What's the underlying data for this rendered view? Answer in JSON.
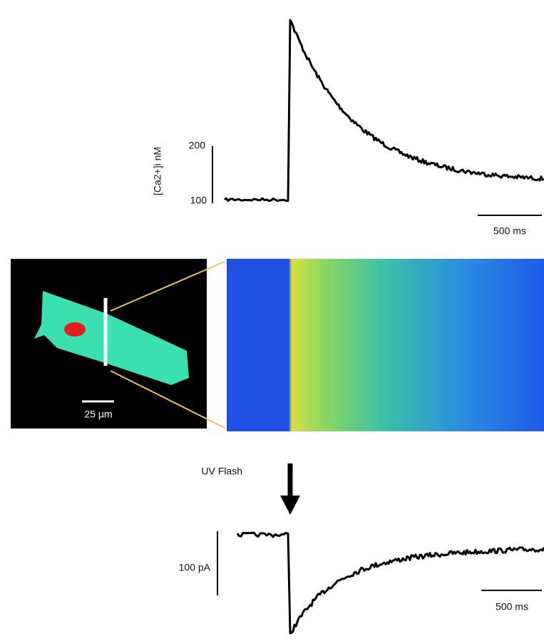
{
  "top_trace": {
    "y_axis_label": "[Ca2+]i nM",
    "scale_labels": [
      "200",
      "100"
    ],
    "time_scale": "500 ms"
  },
  "image": {
    "scale_bar": "25 µm"
  },
  "bottom_trace": {
    "stimulus": "UV Flash",
    "current_scale": "100 pA",
    "time_scale": "500 ms"
  }
}
